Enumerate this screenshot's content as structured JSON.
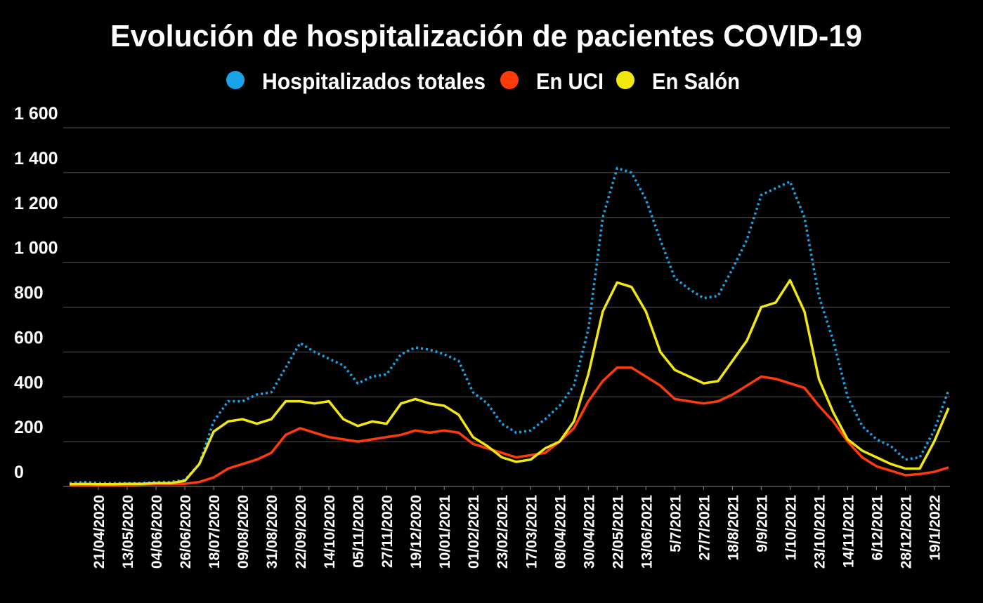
{
  "chart_data": {
    "type": "line",
    "title": "Evolución de hospitalización de pacientes COVID-19",
    "categories": [
      null,
      null,
      "21/04/2020",
      null,
      "13/05/2020",
      null,
      "04/06/2020",
      null,
      "26/06/2020",
      null,
      "18/07/2020",
      null,
      "09/08/2020",
      null,
      "31/08/2020",
      null,
      "22/09/2020",
      null,
      "14/10/2020",
      null,
      "05/11/2020",
      null,
      "27/11/2020",
      null,
      "19/12/2020",
      null,
      "10/01/2021",
      null,
      "01/02/2021",
      null,
      "23/02/2021",
      null,
      "17/03/2021",
      null,
      "08/04/2021",
      null,
      "30/04/2021",
      null,
      "22/05/2021",
      null,
      "13/06/2021",
      null,
      "5/7/2021",
      null,
      "27/7/2021",
      null,
      "18/8/2021",
      null,
      "9/9/2021",
      null,
      "1/10/2021",
      null,
      "23/10/2021",
      null,
      "14/11/2021",
      null,
      "6/12/2021",
      null,
      "28/12/2021",
      null,
      "19/1/2022",
      null
    ],
    "series": [
      {
        "name": "Hospitalizados totales",
        "color": "#1aa3e8",
        "line_style": "dotted",
        "values": [
          15,
          20,
          15,
          15,
          15,
          15,
          20,
          20,
          30,
          100,
          290,
          380,
          380,
          410,
          420,
          530,
          640,
          600,
          570,
          540,
          460,
          490,
          500,
          590,
          620,
          610,
          590,
          560,
          420,
          370,
          280,
          240,
          250,
          300,
          360,
          450,
          700,
          1200,
          1420,
          1400,
          1280,
          1100,
          930,
          880,
          840,
          850,
          970,
          1100,
          1300,
          1330,
          1360,
          1200,
          850,
          650,
          400,
          270,
          210,
          180,
          120,
          130,
          250,
          430
        ]
      },
      {
        "name": "En UCI",
        "color": "#ff3b0a",
        "line_style": "solid",
        "values": [
          5,
          5,
          5,
          5,
          5,
          8,
          10,
          10,
          12,
          20,
          40,
          80,
          100,
          120,
          150,
          230,
          260,
          240,
          220,
          210,
          200,
          210,
          220,
          230,
          250,
          240,
          250,
          240,
          190,
          170,
          150,
          130,
          140,
          150,
          200,
          260,
          380,
          470,
          530,
          530,
          490,
          450,
          390,
          380,
          370,
          380,
          410,
          450,
          490,
          480,
          460,
          440,
          360,
          290,
          200,
          130,
          90,
          70,
          50,
          55,
          65,
          85
        ]
      },
      {
        "name": "En Salón",
        "color": "#f2e80f",
        "line_style": "solid",
        "values": [
          10,
          12,
          10,
          10,
          12,
          12,
          15,
          15,
          25,
          100,
          245,
          290,
          300,
          280,
          300,
          380,
          380,
          370,
          380,
          300,
          270,
          290,
          280,
          370,
          390,
          370,
          360,
          320,
          220,
          180,
          130,
          110,
          120,
          170,
          200,
          290,
          500,
          780,
          910,
          890,
          780,
          600,
          520,
          490,
          460,
          470,
          560,
          650,
          800,
          820,
          920,
          780,
          480,
          330,
          210,
          160,
          130,
          100,
          80,
          80,
          200,
          350
        ]
      }
    ],
    "ylim": [
      0,
      1600
    ],
    "yticks": [
      0,
      200,
      400,
      600,
      800,
      {
        "value": 1000,
        "label": "1 000"
      },
      {
        "value": 1200,
        "label": "1 200"
      },
      {
        "value": 1400,
        "label": "1 400"
      },
      {
        "value": 1600,
        "label": "1 600"
      }
    ],
    "grid": true,
    "legend": "top"
  }
}
